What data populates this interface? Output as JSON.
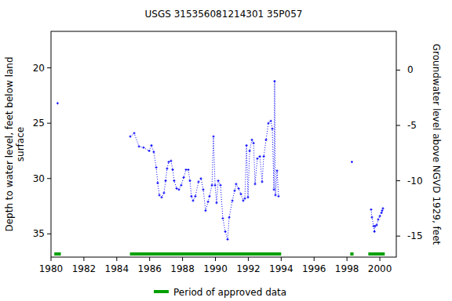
{
  "chart_data": {
    "type": "line",
    "title": "USGS 315356081214301 35P057",
    "y_label": [
      "Depth to water level, feet below land",
      "surface"
    ],
    "y2_label": "Groundwater level above NGVD 1929, feet",
    "xlim": [
      1980,
      2001
    ],
    "xticks": [
      1980,
      1982,
      1984,
      1986,
      1988,
      1990,
      1992,
      1994,
      1996,
      1998,
      2000
    ],
    "ylim": [
      37.1,
      16.7
    ],
    "yticks": [
      20,
      25,
      30,
      35
    ],
    "y2lim": [
      -16.9,
      3.5
    ],
    "y2ticks": [
      0,
      -5,
      -10,
      -15
    ],
    "grid": false,
    "series": [
      {
        "name": "Depth to water level",
        "color": "#0000ff",
        "marker": "plus",
        "line_style": "dotted",
        "x": [
          1980.4,
          null,
          1984.82,
          1985.06,
          1985.35,
          1985.63,
          1985.97,
          1986.11,
          1986.25,
          1986.4,
          1986.49,
          1986.59,
          1986.73,
          1986.87,
          1986.97,
          1987.06,
          1987.16,
          1987.3,
          1987.4,
          1987.49,
          1987.64,
          1987.78,
          1987.92,
          1988.07,
          1988.21,
          1988.35,
          1988.45,
          1988.54,
          1988.64,
          1988.78,
          1988.97,
          1989.12,
          1989.26,
          1989.4,
          1989.55,
          1989.64,
          1989.79,
          1989.88,
          1989.98,
          1990.07,
          1990.17,
          1990.31,
          1990.45,
          1990.6,
          1990.74,
          1990.84,
          1991.03,
          1991.17,
          1991.26,
          1991.41,
          1991.55,
          1991.69,
          1991.79,
          1991.89,
          1991.98,
          1992.08,
          1992.22,
          1992.32,
          1992.41,
          1992.55,
          1992.7,
          1992.84,
          1992.94,
          1993.08,
          1993.22,
          1993.37,
          1993.46,
          1993.56,
          1993.6,
          1993.65,
          1993.75,
          1993.84,
          null,
          1998.3,
          null,
          1999.47,
          1999.52,
          1999.62,
          1999.67,
          1999.71,
          1999.81,
          1999.9,
          2000.0,
          2000.1,
          2000.14,
          2000.19
        ],
        "values": [
          23.2,
          null,
          26.2,
          25.9,
          27.1,
          27.2,
          27.5,
          27.0,
          27.6,
          29.0,
          30.4,
          31.5,
          31.7,
          31.3,
          30.2,
          29.1,
          28.5,
          28.4,
          29.2,
          30.2,
          30.9,
          31.0,
          30.6,
          29.9,
          29.2,
          29.2,
          30.2,
          31.6,
          32.0,
          31.6,
          30.3,
          30.0,
          31.0,
          32.9,
          32.1,
          31.6,
          30.6,
          26.2,
          30.6,
          32.2,
          30.2,
          30.6,
          33.6,
          34.8,
          35.5,
          33.5,
          32.0,
          31.1,
          30.5,
          30.9,
          31.4,
          32.0,
          31.8,
          27.0,
          31.7,
          27.5,
          26.5,
          26.8,
          30.5,
          28.2,
          28.0,
          30.3,
          28.0,
          26.5,
          25.0,
          24.8,
          25.5,
          31.0,
          21.2,
          31.5,
          29.3,
          31.6,
          null,
          28.5,
          null,
          32.8,
          33.5,
          34.3,
          34.8,
          34.3,
          34.2,
          33.7,
          33.4,
          33.1,
          32.9,
          32.7
        ]
      }
    ],
    "approved": {
      "name": "Period of approved data",
      "color": "#00a000",
      "periods": [
        [
          1980.2,
          1980.6
        ],
        [
          1984.8,
          1994.0
        ],
        [
          1998.2,
          1998.4
        ],
        [
          1999.3,
          2000.3
        ]
      ]
    }
  }
}
